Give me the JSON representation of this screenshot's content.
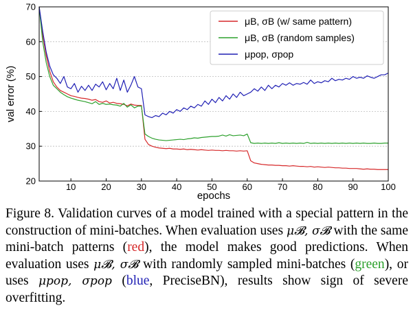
{
  "chart_data": {
    "type": "line",
    "xlabel": "epochs",
    "ylabel": "val error (%)",
    "xlim": [
      1,
      100
    ],
    "ylim": [
      20,
      70
    ],
    "xticks": [
      10,
      20,
      30,
      40,
      50,
      60,
      70,
      80,
      90,
      100
    ],
    "yticks": [
      20,
      30,
      40,
      50,
      60,
      70
    ],
    "grid": "horizontal dashed",
    "legend_position": "top-right",
    "series": [
      {
        "name": "μB, σB (w/ same pattern)",
        "color": "#d62728",
        "values": [
          [
            1,
            70.0
          ],
          [
            2,
            62.0
          ],
          [
            3,
            56.0
          ],
          [
            4,
            51.5
          ],
          [
            5,
            48.5
          ],
          [
            6,
            47.0
          ],
          [
            7,
            46.0
          ],
          [
            8,
            45.5
          ],
          [
            9,
            45.0
          ],
          [
            10,
            44.5
          ],
          [
            11,
            44.3
          ],
          [
            12,
            44.0
          ],
          [
            13,
            43.8
          ],
          [
            14,
            43.7
          ],
          [
            15,
            43.5
          ],
          [
            16,
            43.2
          ],
          [
            17,
            43.4
          ],
          [
            18,
            42.8
          ],
          [
            19,
            42.6
          ],
          [
            20,
            43.0
          ],
          [
            21,
            42.4
          ],
          [
            22,
            42.6
          ],
          [
            23,
            42.3
          ],
          [
            24,
            42.2
          ],
          [
            25,
            42.0
          ],
          [
            26,
            41.6
          ],
          [
            27,
            42.1
          ],
          [
            28,
            41.8
          ],
          [
            29,
            41.7
          ],
          [
            30,
            41.7
          ],
          [
            31,
            32.0
          ],
          [
            32,
            30.5
          ],
          [
            33,
            30.0
          ],
          [
            34,
            29.7
          ],
          [
            35,
            29.5
          ],
          [
            36,
            29.4
          ],
          [
            37,
            29.3
          ],
          [
            38,
            29.4
          ],
          [
            39,
            29.2
          ],
          [
            40,
            29.2
          ],
          [
            41,
            29.1
          ],
          [
            42,
            29.2
          ],
          [
            43,
            29.0
          ],
          [
            44,
            29.1
          ],
          [
            45,
            29.0
          ],
          [
            46,
            28.9
          ],
          [
            47,
            29.0
          ],
          [
            48,
            28.9
          ],
          [
            49,
            28.8
          ],
          [
            50,
            28.9
          ],
          [
            51,
            28.8
          ],
          [
            52,
            28.8
          ],
          [
            53,
            28.7
          ],
          [
            54,
            28.8
          ],
          [
            55,
            28.7
          ],
          [
            56,
            28.7
          ],
          [
            57,
            28.6
          ],
          [
            58,
            28.7
          ],
          [
            59,
            28.6
          ],
          [
            60,
            28.7
          ],
          [
            61,
            25.8
          ],
          [
            62,
            25.2
          ],
          [
            63,
            25.0
          ],
          [
            64,
            24.8
          ],
          [
            65,
            24.7
          ],
          [
            66,
            24.6
          ],
          [
            67,
            24.6
          ],
          [
            68,
            24.5
          ],
          [
            69,
            24.5
          ],
          [
            70,
            24.4
          ],
          [
            71,
            24.4
          ],
          [
            72,
            24.3
          ],
          [
            73,
            24.4
          ],
          [
            74,
            24.3
          ],
          [
            75,
            24.2
          ],
          [
            76,
            24.2
          ],
          [
            77,
            24.1
          ],
          [
            78,
            24.2
          ],
          [
            79,
            24.0
          ],
          [
            80,
            24.1
          ],
          [
            81,
            24.0
          ],
          [
            82,
            23.9
          ],
          [
            83,
            24.0
          ],
          [
            84,
            23.9
          ],
          [
            85,
            23.8
          ],
          [
            86,
            23.8
          ],
          [
            87,
            23.7
          ],
          [
            88,
            23.7
          ],
          [
            89,
            23.6
          ],
          [
            90,
            23.6
          ],
          [
            91,
            23.6
          ],
          [
            92,
            23.5
          ],
          [
            93,
            23.4
          ],
          [
            94,
            23.5
          ],
          [
            95,
            23.4
          ],
          [
            96,
            23.4
          ],
          [
            97,
            23.3
          ],
          [
            98,
            23.3
          ],
          [
            99,
            23.3
          ],
          [
            100,
            23.3
          ]
        ]
      },
      {
        "name": "μB, σB (random samples)",
        "color": "#2ca02c",
        "values": [
          [
            1,
            70.0
          ],
          [
            2,
            60.0
          ],
          [
            3,
            54.0
          ],
          [
            4,
            50.0
          ],
          [
            5,
            47.5
          ],
          [
            6,
            46.5
          ],
          [
            7,
            45.5
          ],
          [
            8,
            44.8
          ],
          [
            9,
            44.2
          ],
          [
            10,
            43.8
          ],
          [
            11,
            43.5
          ],
          [
            12,
            43.2
          ],
          [
            13,
            43.0
          ],
          [
            14,
            42.8
          ],
          [
            15,
            42.5
          ],
          [
            16,
            42.2
          ],
          [
            17,
            42.8
          ],
          [
            18,
            42.0
          ],
          [
            19,
            42.3
          ],
          [
            20,
            42.0
          ],
          [
            21,
            42.1
          ],
          [
            22,
            41.9
          ],
          [
            23,
            41.8
          ],
          [
            24,
            41.5
          ],
          [
            25,
            42.3
          ],
          [
            26,
            41.2
          ],
          [
            27,
            41.9
          ],
          [
            28,
            41.0
          ],
          [
            29,
            41.5
          ],
          [
            30,
            41.5
          ],
          [
            31,
            33.5
          ],
          [
            32,
            32.8
          ],
          [
            33,
            32.3
          ],
          [
            34,
            32.0
          ],
          [
            35,
            31.8
          ],
          [
            36,
            31.7
          ],
          [
            37,
            31.6
          ],
          [
            38,
            31.7
          ],
          [
            39,
            31.8
          ],
          [
            40,
            31.9
          ],
          [
            41,
            32.0
          ],
          [
            42,
            31.9
          ],
          [
            43,
            32.1
          ],
          [
            44,
            32.2
          ],
          [
            45,
            32.4
          ],
          [
            46,
            32.3
          ],
          [
            47,
            32.5
          ],
          [
            48,
            32.6
          ],
          [
            49,
            32.7
          ],
          [
            50,
            32.8
          ],
          [
            51,
            32.8
          ],
          [
            52,
            32.9
          ],
          [
            53,
            33.2
          ],
          [
            54,
            32.9
          ],
          [
            55,
            33.3
          ],
          [
            56,
            33.0
          ],
          [
            57,
            33.1
          ],
          [
            58,
            33.2
          ],
          [
            59,
            33.0
          ],
          [
            60,
            33.5
          ],
          [
            61,
            31.0
          ],
          [
            62,
            30.8
          ],
          [
            63,
            30.9
          ],
          [
            64,
            30.8
          ],
          [
            65,
            30.9
          ],
          [
            66,
            30.8
          ],
          [
            67,
            30.9
          ],
          [
            68,
            30.8
          ],
          [
            69,
            31.0
          ],
          [
            70,
            30.8
          ],
          [
            71,
            30.9
          ],
          [
            72,
            30.8
          ],
          [
            73,
            30.9
          ],
          [
            74,
            30.8
          ],
          [
            75,
            30.9
          ],
          [
            76,
            30.8
          ],
          [
            77,
            31.1
          ],
          [
            78,
            30.8
          ],
          [
            79,
            30.9
          ],
          [
            80,
            30.8
          ],
          [
            81,
            30.9
          ],
          [
            82,
            30.8
          ],
          [
            83,
            30.9
          ],
          [
            84,
            30.8
          ],
          [
            85,
            30.9
          ],
          [
            86,
            30.8
          ],
          [
            87,
            30.9
          ],
          [
            88,
            30.8
          ],
          [
            89,
            30.9
          ],
          [
            90,
            30.8
          ],
          [
            91,
            30.9
          ],
          [
            92,
            30.8
          ],
          [
            93,
            30.9
          ],
          [
            94,
            30.8
          ],
          [
            95,
            30.8
          ],
          [
            96,
            30.9
          ],
          [
            97,
            30.8
          ],
          [
            98,
            30.8
          ],
          [
            99,
            30.9
          ],
          [
            100,
            30.9
          ]
        ]
      },
      {
        "name": "μpop, σpop",
        "color": "#1f1fb4",
        "values": [
          [
            1,
            70.0
          ],
          [
            2,
            63.0
          ],
          [
            3,
            57.0
          ],
          [
            4,
            53.0
          ],
          [
            5,
            50.5
          ],
          [
            6,
            49.5
          ],
          [
            7,
            48.0
          ],
          [
            8,
            50.0
          ],
          [
            9,
            47.0
          ],
          [
            10,
            46.5
          ],
          [
            11,
            48.0
          ],
          [
            12,
            45.5
          ],
          [
            13,
            47.2
          ],
          [
            14,
            46.0
          ],
          [
            15,
            47.5
          ],
          [
            16,
            46.0
          ],
          [
            17,
            47.8
          ],
          [
            18,
            47.0
          ],
          [
            19,
            48.5
          ],
          [
            20,
            46.2
          ],
          [
            21,
            48.0
          ],
          [
            22,
            46.5
          ],
          [
            23,
            49.5
          ],
          [
            24,
            46.0
          ],
          [
            25,
            49.0
          ],
          [
            26,
            45.5
          ],
          [
            27,
            47.5
          ],
          [
            28,
            50.0
          ],
          [
            29,
            47.0
          ],
          [
            30,
            46.5
          ],
          [
            31,
            39.0
          ],
          [
            32,
            38.5
          ],
          [
            33,
            38.2
          ],
          [
            34,
            38.8
          ],
          [
            35,
            38.5
          ],
          [
            36,
            39.5
          ],
          [
            37,
            39.0
          ],
          [
            38,
            40.0
          ],
          [
            39,
            39.5
          ],
          [
            40,
            40.5
          ],
          [
            41,
            40.0
          ],
          [
            42,
            41.0
          ],
          [
            43,
            40.5
          ],
          [
            44,
            41.5
          ],
          [
            45,
            41.0
          ],
          [
            46,
            42.0
          ],
          [
            47,
            41.5
          ],
          [
            48,
            43.0
          ],
          [
            49,
            42.0
          ],
          [
            50,
            43.5
          ],
          [
            51,
            42.5
          ],
          [
            52,
            44.0
          ],
          [
            53,
            43.0
          ],
          [
            54,
            44.5
          ],
          [
            55,
            43.5
          ],
          [
            56,
            45.0
          ],
          [
            57,
            44.0
          ],
          [
            58,
            45.5
          ],
          [
            59,
            44.5
          ],
          [
            60,
            45.0
          ],
          [
            61,
            45.5
          ],
          [
            62,
            46.5
          ],
          [
            63,
            45.8
          ],
          [
            64,
            47.0
          ],
          [
            65,
            46.0
          ],
          [
            66,
            47.5
          ],
          [
            67,
            46.5
          ],
          [
            68,
            47.5
          ],
          [
            69,
            47.0
          ],
          [
            70,
            48.0
          ],
          [
            71,
            47.5
          ],
          [
            72,
            48.2
          ],
          [
            73,
            47.5
          ],
          [
            74,
            48.0
          ],
          [
            75,
            47.8
          ],
          [
            76,
            48.3
          ],
          [
            77,
            47.8
          ],
          [
            78,
            49.0
          ],
          [
            79,
            48.0
          ],
          [
            80,
            48.5
          ],
          [
            81,
            48.2
          ],
          [
            82,
            48.8
          ],
          [
            83,
            48.5
          ],
          [
            84,
            49.5
          ],
          [
            85,
            48.8
          ],
          [
            86,
            49.2
          ],
          [
            87,
            49.0
          ],
          [
            88,
            49.5
          ],
          [
            89,
            49.2
          ],
          [
            90,
            50.0
          ],
          [
            91,
            49.5
          ],
          [
            92,
            49.8
          ],
          [
            93,
            49.5
          ],
          [
            94,
            50.2
          ],
          [
            95,
            49.8
          ],
          [
            96,
            49.5
          ],
          [
            97,
            50.0
          ],
          [
            98,
            50.5
          ],
          [
            99,
            50.5
          ],
          [
            100,
            51.0
          ]
        ]
      }
    ]
  },
  "caption": {
    "p1": "Figure 8. Validation curves of a model trained with a special pattern in the construction of mini-batches. When evaluation uses ",
    "sym_b": "μ𝓑, σ𝓑",
    "p2": " with the same mini-batch patterns (",
    "red": "red",
    "p3": "), the model makes good predictions. When evaluation uses ",
    "p4": " with randomly sampled mini-batches (",
    "green": "green",
    "p5": "), or uses ",
    "sym_pop": "μpop, σpop",
    "p6": " (",
    "blue": "blue",
    "p7": ", PreciseBN), results show sign of severe overfitting."
  }
}
